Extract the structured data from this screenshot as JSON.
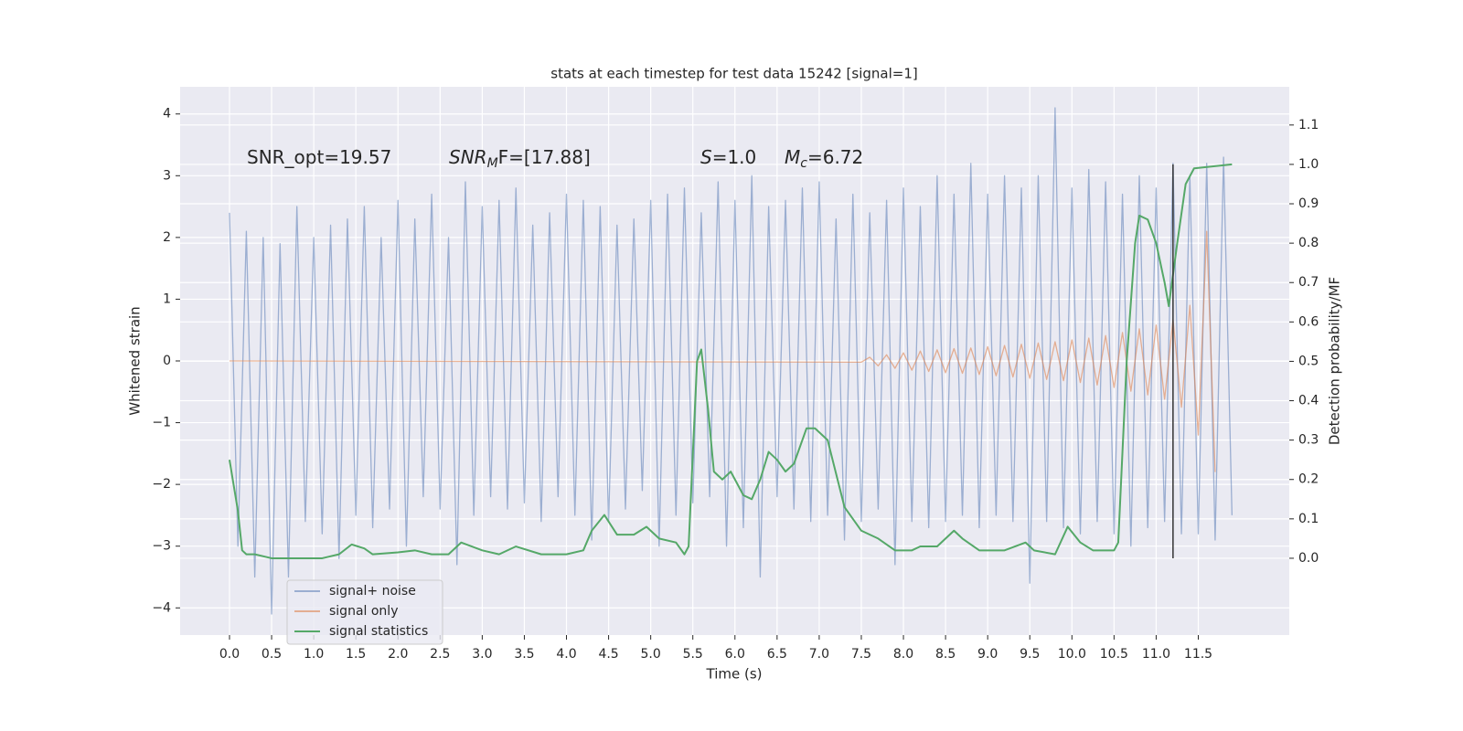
{
  "chart_data": {
    "type": "line",
    "title": "stats at each timestep for test data 15242 [signal=1]",
    "x_label": "Time (s)",
    "y_label": "Whitened strain",
    "y2_label": "Detection probability/MF",
    "xlim": [
      -0.586,
      12.58
    ],
    "ylim": [
      -4.44,
      4.44
    ],
    "y2lim": [
      -0.195,
      1.197
    ],
    "xticks": [
      {
        "value": 0,
        "label": "0.0"
      },
      {
        "value": 0.5,
        "label": "0.5"
      },
      {
        "value": 1,
        "label": "1.0"
      },
      {
        "value": 1.5,
        "label": "1.5"
      },
      {
        "value": 2,
        "label": "2.0"
      },
      {
        "value": 2.5,
        "label": "2.5"
      },
      {
        "value": 3,
        "label": "3.0"
      },
      {
        "value": 3.5,
        "label": "3.5"
      },
      {
        "value": 4,
        "label": "4.0"
      },
      {
        "value": 4.5,
        "label": "4.5"
      },
      {
        "value": 5,
        "label": "5.0"
      },
      {
        "value": 5.5,
        "label": "5.5"
      },
      {
        "value": 6,
        "label": "6.0"
      },
      {
        "value": 6.5,
        "label": "6.5"
      },
      {
        "value": 7,
        "label": "7.0"
      },
      {
        "value": 7.5,
        "label": "7.5"
      },
      {
        "value": 8,
        "label": "8.0"
      },
      {
        "value": 8.5,
        "label": "8.5"
      },
      {
        "value": 9,
        "label": "9.0"
      },
      {
        "value": 9.5,
        "label": "9.5"
      },
      {
        "value": 10,
        "label": "10.0"
      },
      {
        "value": 10.5,
        "label": "10.5"
      },
      {
        "value": 11,
        "label": "11.0"
      },
      {
        "value": 11.5,
        "label": "11.5"
      }
    ],
    "yticks": [
      {
        "value": -4,
        "label": "−4"
      },
      {
        "value": -3,
        "label": "−3"
      },
      {
        "value": -2,
        "label": "−2"
      },
      {
        "value": -1,
        "label": "−1"
      },
      0,
      1,
      2,
      3,
      4
    ],
    "y2ticks": [
      {
        "value": 0,
        "label": "0.0"
      },
      {
        "value": 0.1,
        "label": "0.1"
      },
      {
        "value": 0.2,
        "label": "0.2"
      },
      {
        "value": 0.3,
        "label": "0.3"
      },
      {
        "value": 0.4,
        "label": "0.4"
      },
      {
        "value": 0.5,
        "label": "0.5"
      },
      {
        "value": 0.6,
        "label": "0.6"
      },
      {
        "value": 0.7,
        "label": "0.7"
      },
      {
        "value": 0.8,
        "label": "0.8"
      },
      {
        "value": 0.9,
        "label": "0.9"
      },
      {
        "value": 1,
        "label": "1.0"
      },
      {
        "value": 1.1,
        "label": "1.1"
      }
    ],
    "grid": true,
    "legend": "lower left",
    "annotations": [
      {
        "base": "SNR_opt=19.57"
      },
      {
        "base": "SNR",
        "sub": "M",
        "tail": "F=[17.88]"
      },
      {
        "base": "S",
        "tail": "=1.0"
      },
      {
        "base": "M",
        "sub": "c",
        "tail": "=6.72"
      }
    ],
    "vline": {
      "x": 11.2,
      "y2": [
        0,
        1
      ],
      "color": "#333333"
    },
    "series": [
      {
        "name": "signal+ noise",
        "color": "#4c72b0",
        "alpha": 0.5,
        "x": [
          0.0,
          0.1,
          0.2,
          0.3,
          0.4,
          0.5,
          0.6,
          0.7,
          0.8,
          0.9,
          1.0,
          1.1,
          1.2,
          1.3,
          1.4,
          1.5,
          1.6,
          1.7,
          1.8,
          1.9,
          2.0,
          2.1,
          2.2,
          2.3,
          2.4,
          2.5,
          2.6,
          2.7,
          2.8,
          2.9,
          3.0,
          3.1,
          3.2,
          3.3,
          3.4,
          3.5,
          3.6,
          3.7,
          3.8,
          3.9,
          4.0,
          4.1,
          4.2,
          4.3,
          4.4,
          4.5,
          4.6,
          4.7,
          4.8,
          4.9,
          5.0,
          5.1,
          5.2,
          5.3,
          5.4,
          5.5,
          5.6,
          5.7,
          5.8,
          5.9,
          6.0,
          6.1,
          6.2,
          6.3,
          6.4,
          6.5,
          6.6,
          6.7,
          6.8,
          6.9,
          7.0,
          7.1,
          7.2,
          7.3,
          7.4,
          7.5,
          7.6,
          7.7,
          7.8,
          7.9,
          8.0,
          8.1,
          8.2,
          8.3,
          8.4,
          8.5,
          8.6,
          8.7,
          8.8,
          8.9,
          9.0,
          9.1,
          9.2,
          9.3,
          9.4,
          9.5,
          9.6,
          9.7,
          9.8,
          9.9,
          10.0,
          10.1,
          10.2,
          10.3,
          10.4,
          10.5,
          10.6,
          10.7,
          10.8,
          10.9,
          11.0,
          11.1,
          11.2,
          11.3,
          11.4,
          11.5,
          11.6,
          11.7,
          11.8,
          11.9
        ],
        "values": [
          2.4,
          -3.0,
          2.1,
          -3.5,
          2.0,
          -4.1,
          1.9,
          -3.5,
          2.5,
          -2.6,
          2.0,
          -2.8,
          2.2,
          -3.2,
          2.3,
          -2.5,
          2.5,
          -2.7,
          2.0,
          -2.4,
          2.6,
          -3.0,
          2.3,
          -2.2,
          2.7,
          -2.4,
          2.0,
          -3.3,
          2.9,
          -2.5,
          2.5,
          -2.2,
          2.6,
          -2.4,
          2.8,
          -2.3,
          2.2,
          -2.6,
          2.4,
          -2.2,
          2.7,
          -2.5,
          2.6,
          -2.9,
          2.5,
          -2.6,
          2.2,
          -2.4,
          2.3,
          -2.1,
          2.6,
          -3.0,
          2.7,
          -2.5,
          2.8,
          -2.3,
          2.4,
          -2.2,
          2.9,
          -3.0,
          2.6,
          -2.7,
          3.0,
          -3.5,
          2.5,
          -2.2,
          2.6,
          -2.4,
          2.8,
          -2.6,
          2.9,
          -2.5,
          2.3,
          -2.9,
          2.7,
          -2.6,
          2.4,
          -2.4,
          2.6,
          -3.3,
          2.8,
          -2.6,
          2.5,
          -2.7,
          3.0,
          -2.6,
          2.7,
          -2.5,
          3.2,
          -2.7,
          2.7,
          -2.5,
          3.0,
          -2.6,
          2.8,
          -3.6,
          3.0,
          -2.6,
          4.1,
          -2.7,
          2.8,
          -2.8,
          3.1,
          -2.6,
          2.9,
          -2.8,
          2.7,
          -3.0,
          3.0,
          -2.7,
          2.8,
          -2.6,
          3.2,
          -2.8,
          3.0,
          -2.8,
          3.2,
          -2.9,
          3.3,
          -2.5
        ]
      },
      {
        "name": "signal only",
        "color": "#dd8452",
        "alpha": 0.6,
        "x": [
          0.0,
          7.5,
          7.6,
          7.7,
          7.8,
          7.9,
          8.0,
          8.1,
          8.2,
          8.3,
          8.4,
          8.5,
          8.6,
          8.7,
          8.8,
          8.9,
          9.0,
          9.1,
          9.2,
          9.3,
          9.4,
          9.5,
          9.6,
          9.7,
          9.8,
          9.9,
          10.0,
          10.1,
          10.2,
          10.3,
          10.4,
          10.5,
          10.6,
          10.7,
          10.8,
          10.9,
          11.0,
          11.1,
          11.2,
          11.3,
          11.4,
          11.5,
          11.6,
          11.7
        ],
        "values": [
          0,
          -0.02,
          0.06,
          -0.08,
          0.1,
          -0.12,
          0.13,
          -0.15,
          0.16,
          -0.17,
          0.18,
          -0.19,
          0.2,
          -0.2,
          0.21,
          -0.22,
          0.23,
          -0.24,
          0.25,
          -0.26,
          0.27,
          -0.28,
          0.29,
          -0.3,
          0.31,
          -0.32,
          0.34,
          -0.35,
          0.37,
          -0.39,
          0.41,
          -0.43,
          0.46,
          -0.49,
          0.52,
          -0.55,
          0.58,
          -0.62,
          0.67,
          -0.75,
          0.9,
          -1.2,
          2.1,
          -1.8
        ]
      },
      {
        "name": "signal statistics",
        "color": "#55a868",
        "alpha": 1,
        "axis": "y2",
        "x": [
          0.0,
          0.1,
          0.15,
          0.2,
          0.3,
          0.5,
          0.8,
          1.1,
          1.3,
          1.45,
          1.6,
          1.7,
          2.0,
          2.2,
          2.4,
          2.6,
          2.75,
          3.0,
          3.2,
          3.4,
          3.7,
          4.0,
          4.2,
          4.3,
          4.45,
          4.6,
          4.8,
          4.95,
          5.1,
          5.3,
          5.4,
          5.45,
          5.55,
          5.6,
          5.68,
          5.75,
          5.85,
          5.95,
          6.1,
          6.2,
          6.3,
          6.4,
          6.5,
          6.6,
          6.7,
          6.85,
          6.95,
          7.1,
          7.3,
          7.5,
          7.7,
          7.9,
          8.1,
          8.2,
          8.4,
          8.6,
          8.7,
          8.9,
          9.2,
          9.45,
          9.55,
          9.8,
          9.95,
          10.1,
          10.25,
          10.5,
          10.55,
          10.65,
          10.75,
          10.8,
          10.9,
          11.0,
          11.1,
          11.15,
          11.25,
          11.35,
          11.45,
          11.9
        ],
        "values": [
          0.25,
          0.12,
          0.02,
          0.01,
          0.01,
          0.0,
          0.0,
          0.0,
          0.01,
          0.035,
          0.025,
          0.01,
          0.015,
          0.02,
          0.01,
          0.01,
          0.04,
          0.02,
          0.01,
          0.03,
          0.01,
          0.01,
          0.02,
          0.07,
          0.11,
          0.06,
          0.06,
          0.08,
          0.05,
          0.04,
          0.01,
          0.03,
          0.5,
          0.53,
          0.38,
          0.22,
          0.2,
          0.22,
          0.16,
          0.15,
          0.2,
          0.27,
          0.25,
          0.22,
          0.24,
          0.33,
          0.33,
          0.3,
          0.13,
          0.07,
          0.05,
          0.02,
          0.02,
          0.03,
          0.03,
          0.07,
          0.05,
          0.02,
          0.02,
          0.04,
          0.02,
          0.01,
          0.08,
          0.04,
          0.02,
          0.02,
          0.04,
          0.5,
          0.8,
          0.87,
          0.86,
          0.8,
          0.7,
          0.64,
          0.8,
          0.95,
          0.99,
          1.0
        ]
      }
    ]
  }
}
